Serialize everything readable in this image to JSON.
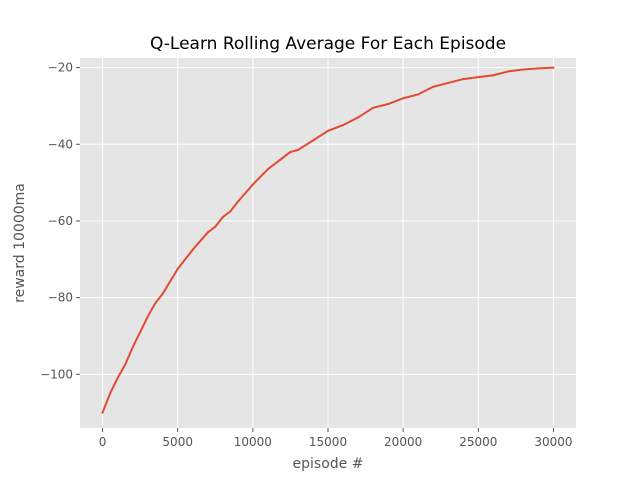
{
  "chart_data": {
    "type": "line",
    "title": "Q-Learn Rolling Average For Each Episode",
    "xlabel": "episode #",
    "ylabel": "reward 10000ma",
    "xlim": [
      -1500,
      31500
    ],
    "ylim": [
      -114,
      -17.5
    ],
    "x_ticks": [
      0,
      5000,
      10000,
      15000,
      20000,
      25000,
      30000
    ],
    "x_tick_labels": [
      "0",
      "5000",
      "10000",
      "15000",
      "20000",
      "25000",
      "30000"
    ],
    "y_ticks": [
      -100,
      -80,
      -60,
      -40,
      -20
    ],
    "y_tick_labels": [
      "−100",
      "−80",
      "−60",
      "−40",
      "−20"
    ],
    "grid": true,
    "background": "#e5e5e5",
    "grid_color": "#ffffff",
    "series": [
      {
        "color": "#e24a33",
        "x": [
          0,
          500,
          1000,
          1500,
          2000,
          2500,
          3000,
          3500,
          4000,
          5000,
          6000,
          7000,
          7500,
          8000,
          8500,
          9000,
          10000,
          11000,
          12000,
          12500,
          13000,
          14000,
          15000,
          16000,
          17000,
          18000,
          19000,
          20000,
          21000,
          22000,
          23000,
          24000,
          25000,
          26000,
          27000,
          28000,
          29000,
          30000
        ],
        "y": [
          -110,
          -105,
          -101,
          -97.5,
          -93,
          -89,
          -85,
          -81.5,
          -79,
          -72.5,
          -67.5,
          -63,
          -61.5,
          -59,
          -57.5,
          -55,
          -50.5,
          -46.5,
          -43.5,
          -42,
          -41.5,
          -39,
          -36.5,
          -35,
          -33,
          -30.5,
          -29.5,
          -28,
          -27,
          -25,
          -24,
          -23,
          -22.5,
          -22,
          -21,
          -20.5,
          -20.2,
          -20
        ]
      }
    ]
  }
}
